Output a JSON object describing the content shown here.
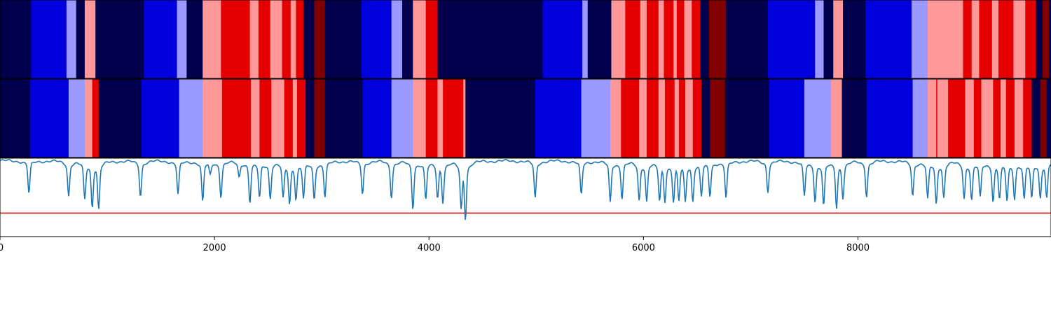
{
  "chart_data": [
    {
      "type": "heatmap",
      "xlim": [
        0,
        9800
      ],
      "colors": {
        "0": "#00004d",
        "1": "#0000dd",
        "2": "#9999ff",
        "3": "#ff9999",
        "4": "#e50000",
        "5": "#800000"
      },
      "segments": [
        [
          0,
          290,
          0
        ],
        [
          290,
          620,
          1
        ],
        [
          620,
          710,
          2
        ],
        [
          710,
          790,
          0
        ],
        [
          790,
          890,
          3
        ],
        [
          890,
          1340,
          0
        ],
        [
          1340,
          1650,
          1
        ],
        [
          1650,
          1740,
          2
        ],
        [
          1740,
          1890,
          0
        ],
        [
          1890,
          2060,
          3
        ],
        [
          2060,
          2330,
          4
        ],
        [
          2330,
          2410,
          3
        ],
        [
          2410,
          2520,
          4
        ],
        [
          2520,
          2630,
          3
        ],
        [
          2630,
          2710,
          4
        ],
        [
          2710,
          2760,
          3
        ],
        [
          2760,
          2830,
          4
        ],
        [
          2830,
          2930,
          0
        ],
        [
          2930,
          3030,
          5
        ],
        [
          3030,
          3370,
          0
        ],
        [
          3370,
          3650,
          1
        ],
        [
          3650,
          3750,
          2
        ],
        [
          3750,
          3850,
          0
        ],
        [
          3850,
          3970,
          3
        ],
        [
          3970,
          4080,
          4
        ],
        [
          4080,
          5060,
          0
        ],
        [
          5060,
          5430,
          1
        ],
        [
          5430,
          5480,
          2
        ],
        [
          5480,
          5700,
          0
        ],
        [
          5700,
          5830,
          3
        ],
        [
          5830,
          5970,
          4
        ],
        [
          5970,
          6030,
          3
        ],
        [
          6030,
          6140,
          4
        ],
        [
          6140,
          6190,
          3
        ],
        [
          6190,
          6280,
          4
        ],
        [
          6280,
          6310,
          3
        ],
        [
          6310,
          6380,
          4
        ],
        [
          6380,
          6450,
          3
        ],
        [
          6450,
          6530,
          4
        ],
        [
          6530,
          6610,
          0
        ],
        [
          6610,
          6770,
          5
        ],
        [
          6770,
          7160,
          0
        ],
        [
          7160,
          7600,
          1
        ],
        [
          7600,
          7680,
          2
        ],
        [
          7680,
          7770,
          0
        ],
        [
          7770,
          7860,
          3
        ],
        [
          7860,
          8070,
          0
        ],
        [
          8070,
          8500,
          1
        ],
        [
          8500,
          8650,
          2
        ],
        [
          8650,
          8980,
          3
        ],
        [
          8980,
          9060,
          4
        ],
        [
          9060,
          9130,
          3
        ],
        [
          9130,
          9250,
          4
        ],
        [
          9250,
          9310,
          3
        ],
        [
          9310,
          9450,
          4
        ],
        [
          9450,
          9560,
          3
        ],
        [
          9560,
          9660,
          4
        ],
        [
          9660,
          9720,
          0
        ],
        [
          9720,
          9780,
          5
        ],
        [
          9780,
          9800,
          0
        ]
      ]
    },
    {
      "type": "heatmap",
      "xlim": [
        0,
        9800
      ],
      "colors": {
        "0": "#00004d",
        "1": "#0000dd",
        "2": "#9999ff",
        "3": "#ff9999",
        "4": "#e50000",
        "5": "#800000"
      },
      "segments": [
        [
          0,
          280,
          0
        ],
        [
          280,
          640,
          1
        ],
        [
          640,
          790,
          2
        ],
        [
          790,
          860,
          3
        ],
        [
          860,
          920,
          4
        ],
        [
          920,
          1320,
          0
        ],
        [
          1320,
          1670,
          1
        ],
        [
          1670,
          1890,
          2
        ],
        [
          1890,
          2070,
          3
        ],
        [
          2070,
          2340,
          4
        ],
        [
          2340,
          2420,
          3
        ],
        [
          2420,
          2530,
          4
        ],
        [
          2530,
          2650,
          3
        ],
        [
          2650,
          2730,
          4
        ],
        [
          2730,
          2770,
          3
        ],
        [
          2770,
          2850,
          4
        ],
        [
          2850,
          2930,
          0
        ],
        [
          2930,
          3030,
          5
        ],
        [
          3030,
          3380,
          0
        ],
        [
          3380,
          3650,
          1
        ],
        [
          3650,
          3850,
          2
        ],
        [
          3850,
          3970,
          3
        ],
        [
          3970,
          4080,
          4
        ],
        [
          4080,
          4130,
          3
        ],
        [
          4130,
          4320,
          4
        ],
        [
          4320,
          4340,
          3
        ],
        [
          4340,
          4990,
          0
        ],
        [
          4990,
          5420,
          1
        ],
        [
          5420,
          5690,
          2
        ],
        [
          5690,
          5790,
          3
        ],
        [
          5790,
          5960,
          4
        ],
        [
          5960,
          6030,
          3
        ],
        [
          6030,
          6140,
          4
        ],
        [
          6140,
          6200,
          3
        ],
        [
          6200,
          6290,
          4
        ],
        [
          6290,
          6330,
          3
        ],
        [
          6330,
          6390,
          4
        ],
        [
          6390,
          6460,
          3
        ],
        [
          6460,
          6540,
          4
        ],
        [
          6540,
          6620,
          0
        ],
        [
          6620,
          6760,
          5
        ],
        [
          6760,
          7170,
          0
        ],
        [
          7170,
          7500,
          1
        ],
        [
          7500,
          7750,
          2
        ],
        [
          7750,
          7850,
          3
        ],
        [
          7850,
          8080,
          0
        ],
        [
          8080,
          8510,
          1
        ],
        [
          8510,
          8650,
          2
        ],
        [
          8650,
          8730,
          3
        ],
        [
          8730,
          8740,
          4
        ],
        [
          8740,
          8840,
          3
        ],
        [
          8840,
          9000,
          4
        ],
        [
          9000,
          9080,
          3
        ],
        [
          9080,
          9150,
          4
        ],
        [
          9150,
          9260,
          3
        ],
        [
          9260,
          9330,
          4
        ],
        [
          9330,
          9380,
          3
        ],
        [
          9380,
          9460,
          4
        ],
        [
          9460,
          9540,
          3
        ],
        [
          9540,
          9620,
          4
        ],
        [
          9620,
          9700,
          0
        ],
        [
          9700,
          9760,
          5
        ],
        [
          9760,
          9800,
          0
        ]
      ]
    },
    {
      "type": "line",
      "xlim": [
        0,
        9800
      ],
      "ylim": [
        0,
        1
      ],
      "grid": false,
      "threshold": 0.3,
      "threshold_color": "#e00000",
      "line_color": "#1f77b4",
      "xticks": [
        0,
        2000,
        4000,
        6000,
        8000
      ],
      "xticklabels": [
        "0",
        "2000",
        "4000",
        "6000",
        "8000"
      ],
      "baseline": 0.97,
      "dips": [
        [
          270,
          0.55
        ],
        [
          640,
          0.53
        ],
        [
          790,
          0.5
        ],
        [
          860,
          0.42
        ],
        [
          920,
          0.38
        ],
        [
          1310,
          0.52
        ],
        [
          1660,
          0.54
        ],
        [
          1890,
          0.45
        ],
        [
          1960,
          0.82
        ],
        [
          2060,
          0.52
        ],
        [
          2230,
          0.78
        ],
        [
          2330,
          0.45
        ],
        [
          2420,
          0.52
        ],
        [
          2520,
          0.51
        ],
        [
          2640,
          0.53
        ],
        [
          2700,
          0.47
        ],
        [
          2760,
          0.53
        ],
        [
          2830,
          0.52
        ],
        [
          2930,
          0.5
        ],
        [
          3030,
          0.52
        ],
        [
          3380,
          0.55
        ],
        [
          3650,
          0.51
        ],
        [
          3850,
          0.37
        ],
        [
          3970,
          0.49
        ],
        [
          4080,
          0.53
        ],
        [
          4130,
          0.48
        ],
        [
          4300,
          0.4
        ],
        [
          4340,
          0.27
        ],
        [
          4990,
          0.49
        ],
        [
          5420,
          0.53
        ],
        [
          5690,
          0.45
        ],
        [
          5800,
          0.5
        ],
        [
          5960,
          0.49
        ],
        [
          6030,
          0.48
        ],
        [
          6150,
          0.5
        ],
        [
          6200,
          0.51
        ],
        [
          6280,
          0.5
        ],
        [
          6330,
          0.52
        ],
        [
          6390,
          0.5
        ],
        [
          6460,
          0.5
        ],
        [
          6540,
          0.55
        ],
        [
          6620,
          0.54
        ],
        [
          6770,
          0.5
        ],
        [
          7160,
          0.58
        ],
        [
          7500,
          0.53
        ],
        [
          7600,
          0.48
        ],
        [
          7680,
          0.42
        ],
        [
          7800,
          0.4
        ],
        [
          7860,
          0.53
        ],
        [
          8080,
          0.52
        ],
        [
          8510,
          0.53
        ],
        [
          8650,
          0.5
        ],
        [
          8730,
          0.45
        ],
        [
          8800,
          0.53
        ],
        [
          8990,
          0.52
        ],
        [
          9060,
          0.5
        ],
        [
          9140,
          0.53
        ],
        [
          9260,
          0.49
        ],
        [
          9320,
          0.53
        ],
        [
          9390,
          0.5
        ],
        [
          9460,
          0.53
        ],
        [
          9550,
          0.51
        ],
        [
          9620,
          0.52
        ],
        [
          9700,
          0.53
        ],
        [
          9760,
          0.52
        ]
      ]
    }
  ]
}
